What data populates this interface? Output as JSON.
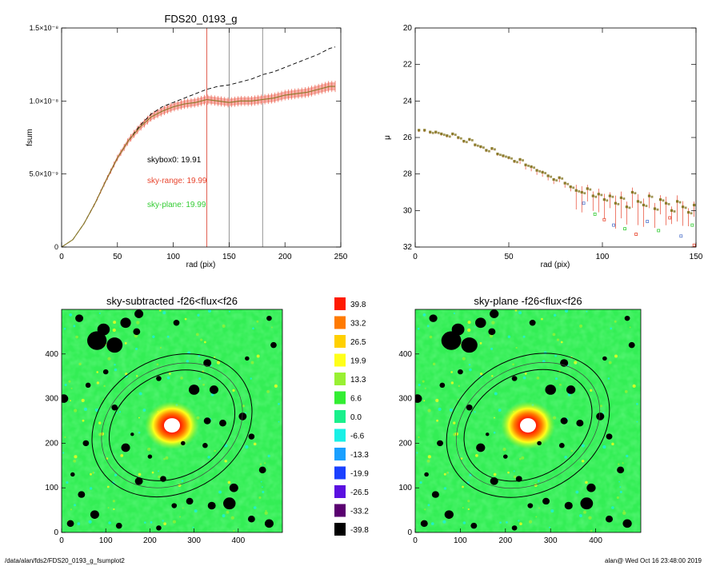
{
  "footer": {
    "path": "/data/alan/fds2/FDS20_0193_g_fsumplot2",
    "stamp": "alan@  Wed Oct 16 23:48:00 2019"
  },
  "colors": {
    "red": "#e8452e",
    "red_band": "#f4a39a",
    "green": "#33cc33",
    "olive": "#8a7a2a",
    "blue": "#5577cc",
    "vline_red": "#e05040",
    "vline_gray": "#888888"
  },
  "chart_data": [
    {
      "type": "line",
      "title": "FDS20_0193_g",
      "xlabel": "rad (pix)",
      "ylabel": "fsum",
      "xlim": [
        0,
        250
      ],
      "ylim": [
        0,
        1.5e-08
      ],
      "xticks": [
        0,
        50,
        100,
        150,
        200,
        250
      ],
      "yticks": [
        {
          "value": 0,
          "label": "0"
        },
        {
          "value": 5e-09,
          "label": "5.0×10⁻⁹"
        },
        {
          "value": 1e-08,
          "label": "1.0×10⁻⁸"
        },
        {
          "value": 1.5e-08,
          "label": "1.5×10⁻⁸"
        }
      ],
      "vlines": [
        130,
        150,
        180
      ],
      "annotations": [
        {
          "text": "skybox0: 19.91",
          "color": "#000000"
        },
        {
          "text": "sky-range: 19.99",
          "color": "#e8452e"
        },
        {
          "text": "sky-plane: 19.99",
          "color": "#33cc33"
        }
      ],
      "series": [
        {
          "style": "dashed",
          "x": [
            0,
            10,
            20,
            30,
            40,
            50,
            60,
            70,
            80,
            90,
            100,
            110,
            120,
            130,
            140,
            150,
            160,
            170,
            180,
            190,
            200,
            210,
            220,
            230,
            240,
            245
          ],
          "y": [
            0,
            5e-10,
            1.6e-09,
            3e-09,
            4.6e-09,
            6.1e-09,
            7.3e-09,
            8.3e-09,
            9.1e-09,
            9.6e-09,
            9.9e-09,
            1.02e-08,
            1.05e-08,
            1.08e-08,
            1.1e-08,
            1.11e-08,
            1.13e-08,
            1.15e-08,
            1.18e-08,
            1.2e-08,
            1.23e-08,
            1.26e-08,
            1.29e-08,
            1.32e-08,
            1.36e-08,
            1.37e-08
          ]
        },
        {
          "style": "solid-errorbars",
          "x": [
            0,
            10,
            20,
            30,
            40,
            50,
            60,
            70,
            80,
            90,
            100,
            110,
            120,
            130,
            140,
            150,
            160,
            170,
            180,
            190,
            200,
            210,
            220,
            230,
            240,
            245
          ],
          "y": [
            0,
            5e-10,
            1.6e-09,
            3e-09,
            4.6e-09,
            6.1e-09,
            7.3e-09,
            8.2e-09,
            8.9e-09,
            9.3e-09,
            9.6e-09,
            9.8e-09,
            9.9e-09,
            1.01e-08,
            1e-08,
            9.9e-09,
            1e-08,
            1e-08,
            1.01e-08,
            1.02e-08,
            1.04e-08,
            1.05e-08,
            1.06e-08,
            1.08e-08,
            1.1e-08,
            1.1e-08
          ]
        }
      ]
    },
    {
      "type": "scatter",
      "title": "",
      "xlabel": "rad (pix)",
      "ylabel": "μ",
      "xlim": [
        0,
        150
      ],
      "ylim": [
        32,
        20
      ],
      "xticks": [
        0,
        50,
        100,
        150
      ],
      "yticks": [
        20,
        22,
        24,
        26,
        28,
        30,
        32
      ],
      "x": [
        2,
        5,
        8,
        11,
        14,
        17,
        20,
        23,
        26,
        29,
        32,
        35,
        38,
        41,
        44,
        47,
        50,
        53,
        56,
        59,
        62,
        65,
        68,
        71,
        74,
        77,
        80,
        83,
        86,
        89,
        92,
        95,
        98,
        101,
        104,
        107,
        110,
        113,
        116,
        119,
        122,
        125,
        128,
        131,
        134,
        137,
        140,
        143,
        146,
        149
      ],
      "y": [
        25.6,
        25.6,
        25.7,
        25.7,
        25.8,
        25.9,
        25.8,
        26.0,
        26.2,
        26.1,
        26.4,
        26.5,
        26.7,
        26.6,
        26.9,
        27.0,
        27.1,
        27.3,
        27.2,
        27.5,
        27.6,
        27.8,
        27.9,
        28.1,
        28.3,
        28.2,
        28.5,
        28.7,
        28.9,
        29.0,
        28.8,
        29.2,
        29.1,
        29.4,
        29.2,
        29.6,
        29.3,
        29.8,
        29.0,
        29.5,
        29.7,
        29.2,
        29.9,
        29.4,
        29.6,
        30.0,
        29.5,
        29.8,
        30.1,
        29.7
      ],
      "scatter_low": [
        {
          "x": 90,
          "y": 29.6
        },
        {
          "x": 96,
          "y": 30.2
        },
        {
          "x": 101,
          "y": 30.5
        },
        {
          "x": 106,
          "y": 30.8
        },
        {
          "x": 112,
          "y": 31.0
        },
        {
          "x": 118,
          "y": 31.3
        },
        {
          "x": 124,
          "y": 30.6
        },
        {
          "x": 130,
          "y": 31.1
        },
        {
          "x": 136,
          "y": 30.4
        },
        {
          "x": 142,
          "y": 31.4
        },
        {
          "x": 148,
          "y": 30.8
        },
        {
          "x": 149,
          "y": 31.9
        }
      ]
    },
    {
      "type": "heatmap",
      "title": "sky-subtracted -f26<flux<f26",
      "xlim": [
        0,
        500
      ],
      "ylim": [
        0,
        500
      ],
      "xticks": [
        0,
        100,
        200,
        300,
        400
      ],
      "yticks": [
        0,
        100,
        200,
        300,
        400
      ],
      "center": [
        250,
        240
      ],
      "ellipses": [
        {
          "a": 150,
          "b": 115,
          "angle": 30
        },
        {
          "a": 168,
          "b": 130,
          "angle": 30
        },
        {
          "a": 190,
          "b": 150,
          "angle": 30
        }
      ]
    },
    {
      "type": "heatmap",
      "title": "sky-plane -f26<flux<f26",
      "xlim": [
        0,
        500
      ],
      "ylim": [
        0,
        500
      ],
      "xticks": [
        0,
        100,
        200,
        300,
        400
      ],
      "yticks": [
        0,
        100,
        200,
        300,
        400
      ],
      "center": [
        250,
        240
      ],
      "ellipses": [
        {
          "a": 150,
          "b": 115,
          "angle": 30
        },
        {
          "a": 168,
          "b": 130,
          "angle": 30
        },
        {
          "a": 190,
          "b": 150,
          "angle": 30
        }
      ]
    }
  ],
  "colorbar": {
    "levels": [
      {
        "label": "39.8",
        "color": "#ff1a00"
      },
      {
        "label": "33.2",
        "color": "#ff7a00"
      },
      {
        "label": "26.5",
        "color": "#ffd000"
      },
      {
        "label": "19.9",
        "color": "#ffff1a"
      },
      {
        "label": "13.3",
        "color": "#99f033"
      },
      {
        "label": "6.6",
        "color": "#33ee33"
      },
      {
        "label": "0.0",
        "color": "#19f08c"
      },
      {
        "label": "-6.6",
        "color": "#19f0e6"
      },
      {
        "label": "-13.3",
        "color": "#1aa0ff"
      },
      {
        "label": "-19.9",
        "color": "#1a40ff"
      },
      {
        "label": "-26.5",
        "color": "#5a10e0"
      },
      {
        "label": "-33.2",
        "color": "#5a0070"
      },
      {
        "label": "-39.8",
        "color": "#000000"
      }
    ]
  }
}
